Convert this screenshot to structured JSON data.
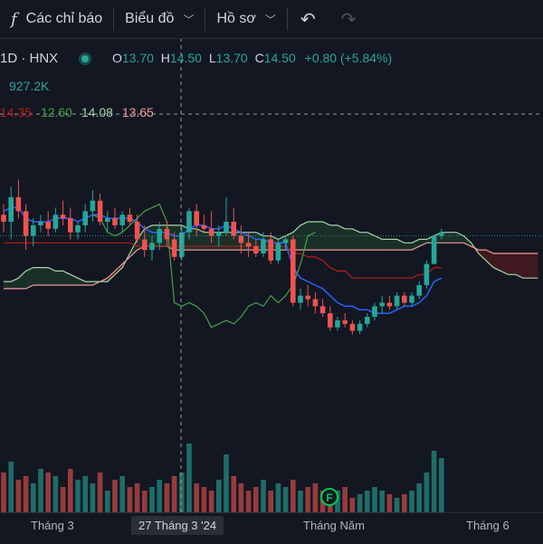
{
  "toolbar": {
    "indicators_label": "Các chỉ báo",
    "chart_label": "Biểu đồ",
    "profile_label": "Hồ sơ",
    "fx_glyph": "f",
    "undo_glyph": "↶",
    "redo_glyph": "↷"
  },
  "legend": {
    "symbol": "1D · HNX",
    "open_key": "O",
    "open": "13.70",
    "high_key": "H",
    "high": "14.50",
    "low_key": "L",
    "low": "13.70",
    "close_key": "C",
    "close": "14.50",
    "change": "+0.80 (+5.84%)",
    "volume": "927.2K",
    "ichimoku": [
      "14.35",
      "12.60",
      "14.08",
      "13.65"
    ]
  },
  "colors": {
    "up": "#26a69a",
    "down": "#ef5350",
    "conversion": "#2962ff",
    "base": "#b71c1c",
    "lagging": "#43a047",
    "span_a": "#a5d6a7",
    "span_b": "#ef9a9a",
    "cloud_down": "#5d2a2e"
  },
  "chart_data": {
    "type": "candlestick",
    "ylim": [
      10.4,
      17.6
    ],
    "x_labels": [
      "Tháng 3",
      "27 Tháng 3 '24",
      "Tháng Năm",
      "Tháng 6"
    ],
    "selected_label": "27 Tháng 3 '24",
    "event_marker": "F",
    "candles": [
      [
        15.1,
        15.4,
        14.6,
        14.9
      ],
      [
        14.9,
        15.9,
        14.4,
        15.6
      ],
      [
        15.6,
        16.1,
        15.0,
        15.2
      ],
      [
        15.2,
        15.4,
        14.1,
        14.5
      ],
      [
        14.5,
        15.0,
        14.2,
        14.8
      ],
      [
        14.8,
        15.1,
        14.6,
        14.9
      ],
      [
        14.9,
        15.2,
        14.5,
        14.7
      ],
      [
        14.7,
        15.3,
        14.6,
        15.1
      ],
      [
        15.1,
        15.5,
        14.8,
        15.0
      ],
      [
        15.0,
        15.3,
        14.4,
        14.6
      ],
      [
        14.6,
        14.9,
        14.4,
        14.8
      ],
      [
        14.8,
        15.4,
        14.6,
        15.2
      ],
      [
        15.2,
        15.8,
        14.9,
        15.5
      ],
      [
        15.5,
        15.7,
        14.8,
        14.9
      ],
      [
        14.9,
        15.2,
        14.6,
        15.0
      ],
      [
        15.0,
        15.3,
        14.7,
        14.8
      ],
      [
        14.8,
        15.2,
        14.6,
        15.1
      ],
      [
        15.1,
        15.3,
        14.8,
        14.9
      ],
      [
        14.9,
        15.1,
        14.3,
        14.4
      ],
      [
        14.4,
        14.8,
        13.9,
        14.1
      ],
      [
        14.1,
        14.5,
        13.8,
        14.3
      ],
      [
        14.3,
        14.9,
        14.1,
        14.7
      ],
      [
        14.7,
        14.9,
        14.2,
        14.4
      ],
      [
        14.4,
        14.6,
        13.8,
        13.9
      ],
      [
        13.9,
        14.8,
        13.8,
        14.6
      ],
      [
        14.6,
        15.3,
        14.4,
        15.2
      ],
      [
        15.2,
        15.4,
        14.5,
        14.8
      ],
      [
        14.8,
        15.1,
        14.6,
        14.7
      ],
      [
        14.7,
        15.2,
        14.3,
        14.5
      ],
      [
        14.5,
        14.8,
        14.2,
        14.6
      ],
      [
        14.6,
        15.6,
        14.5,
        14.9
      ],
      [
        14.9,
        15.3,
        14.4,
        14.5
      ],
      [
        14.5,
        14.8,
        14.0,
        14.3
      ],
      [
        14.3,
        14.6,
        13.9,
        14.2
      ],
      [
        14.2,
        14.4,
        13.9,
        14.0
      ],
      [
        14.0,
        14.6,
        13.9,
        14.4
      ],
      [
        14.4,
        14.6,
        13.7,
        13.8
      ],
      [
        13.8,
        14.4,
        13.7,
        14.3
      ],
      [
        14.3,
        14.5,
        14.1,
        14.4
      ],
      [
        14.4,
        14.5,
        12.5,
        12.6
      ],
      [
        12.6,
        13.0,
        12.4,
        12.8
      ],
      [
        12.8,
        13.1,
        12.5,
        12.7
      ],
      [
        12.7,
        12.9,
        12.3,
        12.5
      ],
      [
        12.5,
        12.7,
        12.2,
        12.3
      ],
      [
        12.3,
        12.5,
        11.8,
        11.9
      ],
      [
        11.9,
        12.2,
        11.8,
        12.1
      ],
      [
        12.1,
        12.3,
        11.9,
        12.0
      ],
      [
        12.0,
        12.1,
        11.7,
        11.8
      ],
      [
        11.8,
        12.1,
        11.7,
        12.0
      ],
      [
        12.0,
        12.3,
        11.9,
        12.2
      ],
      [
        12.2,
        12.6,
        12.1,
        12.5
      ],
      [
        12.5,
        12.8,
        12.3,
        12.6
      ],
      [
        12.6,
        12.8,
        12.4,
        12.5
      ],
      [
        12.5,
        12.9,
        12.4,
        12.8
      ],
      [
        12.8,
        12.9,
        12.5,
        12.6
      ],
      [
        12.6,
        12.9,
        12.5,
        12.8
      ],
      [
        12.8,
        13.2,
        12.7,
        13.1
      ],
      [
        13.1,
        13.8,
        13.0,
        13.7
      ],
      [
        13.7,
        14.5,
        13.7,
        14.5
      ],
      [
        14.5,
        14.7,
        14.4,
        14.6
      ]
    ],
    "volume": [
      0.55,
      0.7,
      0.45,
      0.5,
      0.4,
      0.6,
      0.55,
      0.5,
      0.35,
      0.6,
      0.45,
      0.5,
      0.4,
      0.55,
      0.3,
      0.45,
      0.5,
      0.35,
      0.4,
      0.3,
      0.35,
      0.45,
      0.4,
      0.5,
      0.55,
      0.95,
      0.4,
      0.35,
      0.3,
      0.45,
      0.8,
      0.5,
      0.4,
      0.3,
      0.35,
      0.45,
      0.3,
      0.4,
      0.35,
      0.45,
      0.3,
      0.35,
      0.4,
      0.3,
      0.25,
      0.3,
      0.35,
      0.2,
      0.25,
      0.3,
      0.35,
      0.3,
      0.25,
      0.2,
      0.25,
      0.3,
      0.4,
      0.55,
      0.85,
      0.75
    ],
    "conversion": [
      15.2,
      15.3,
      15.3,
      15.0,
      14.9,
      14.9,
      14.9,
      15.0,
      15.0,
      15.0,
      14.9,
      15.0,
      15.1,
      15.1,
      15.0,
      15.0,
      15.0,
      15.0,
      14.9,
      14.7,
      14.6,
      14.6,
      14.6,
      14.5,
      14.5,
      14.7,
      14.8,
      14.8,
      14.7,
      14.7,
      14.8,
      14.7,
      14.6,
      14.5,
      14.4,
      14.4,
      14.3,
      14.3,
      14.3,
      13.6,
      13.3,
      13.2,
      13.1,
      13.0,
      12.8,
      12.6,
      12.5,
      12.5,
      12.4,
      12.4,
      12.3,
      12.3,
      12.3,
      12.4,
      12.5,
      12.5,
      12.6,
      12.8,
      13.2,
      13.3
    ],
    "base": [
      14.3,
      14.3,
      14.3,
      14.3,
      14.3,
      14.3,
      14.3,
      14.3,
      14.3,
      14.3,
      14.3,
      14.3,
      14.3,
      14.3,
      14.3,
      14.3,
      14.3,
      14.3,
      14.2,
      14.2,
      14.2,
      14.2,
      14.2,
      14.2,
      14.2,
      14.2,
      14.2,
      14.2,
      14.2,
      14.2,
      14.2,
      14.2,
      14.2,
      14.2,
      14.2,
      14.2,
      14.2,
      14.2,
      14.2,
      14.0,
      14.0,
      13.9,
      13.9,
      13.8,
      13.6,
      13.5,
      13.5,
      13.3,
      13.3,
      13.3,
      13.3,
      13.3,
      13.3,
      13.3,
      13.3,
      13.3,
      13.4,
      13.4,
      13.6,
      13.6
    ],
    "lagging": [
      15.1,
      15.0,
      14.6,
      14.5,
      14.6,
      14.8,
      15.0,
      15.2,
      15.3,
      15.4,
      14.9,
      12.6,
      12.5,
      12.6,
      12.5,
      12.3,
      11.9,
      12.0,
      12.1,
      12.0,
      12.2,
      12.5,
      12.6,
      12.5,
      12.8,
      12.6,
      12.8,
      13.1,
      13.7,
      14.5,
      14.6
    ],
    "span_a": [
      13.2,
      13.2,
      13.3,
      13.5,
      13.6,
      13.6,
      13.6,
      13.5,
      13.5,
      13.4,
      13.3,
      13.2,
      13.2,
      13.2,
      13.2,
      13.4,
      13.6,
      14.0,
      14.4,
      14.7,
      14.8,
      14.8,
      14.8,
      14.8,
      14.8,
      14.7,
      14.7,
      14.6,
      14.6,
      14.6,
      14.6,
      14.6,
      14.6,
      14.6,
      14.6,
      14.5,
      14.5,
      14.4,
      14.5,
      14.6,
      14.8,
      14.9,
      14.9,
      14.9,
      14.8,
      14.8,
      14.7,
      14.7,
      14.6,
      14.6,
      14.5,
      14.4,
      14.4,
      14.4,
      14.3,
      14.3,
      14.4,
      14.4,
      14.5,
      14.6,
      14.6,
      14.6,
      14.5,
      14.3,
      14.0,
      13.8,
      13.6,
      13.5,
      13.4,
      13.4,
      13.3,
      13.3,
      13.3
    ],
    "span_b": [
      13.0,
      13.0,
      13.0,
      13.0,
      13.1,
      13.1,
      13.1,
      13.1,
      13.1,
      13.1,
      13.1,
      13.1,
      13.1,
      13.2,
      13.3,
      13.5,
      13.7,
      13.9,
      14.1,
      14.2,
      14.2,
      14.2,
      14.2,
      14.1,
      14.1,
      14.1,
      14.1,
      14.1,
      14.1,
      14.1,
      14.1,
      14.1,
      14.1,
      14.1,
      14.1,
      14.1,
      14.1,
      14.1,
      14.1,
      14.1,
      14.1,
      14.1,
      14.1,
      14.1,
      14.1,
      14.1,
      14.1,
      14.1,
      14.1,
      14.1,
      14.1,
      14.1,
      14.1,
      14.1,
      14.1,
      14.1,
      14.2,
      14.3,
      14.3,
      14.3,
      14.3,
      14.3,
      14.3,
      14.2,
      14.1,
      14.1,
      14.0,
      14.0,
      14.0,
      14.0,
      14.0,
      14.0,
      14.0
    ],
    "last_price": 14.5,
    "crosshair_price": 16.4
  }
}
